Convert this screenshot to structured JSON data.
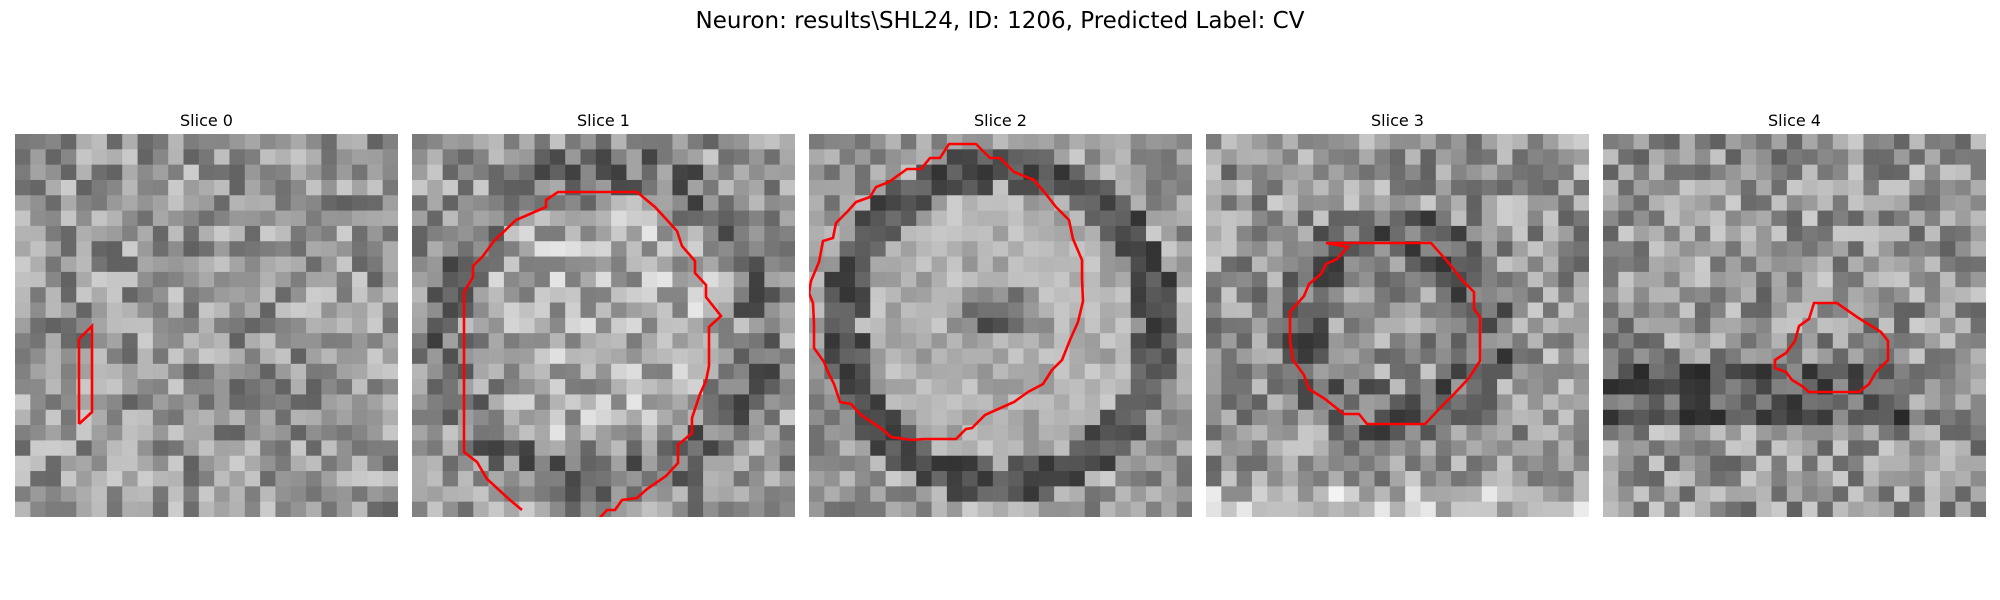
{
  "figure": {
    "title": "Neuron: results\\SHL24, ID: 1206, Predicted Label: CV"
  },
  "panels": [
    {
      "title": "Slice 0",
      "pattern": "noise",
      "seed": 11,
      "contour_color": "#ff0000"
    },
    {
      "title": "Slice 1",
      "pattern": "large-blob",
      "seed": 23,
      "contour_color": "#ff0000"
    },
    {
      "title": "Slice 2",
      "pattern": "ring",
      "seed": 37,
      "contour_color": "#ff0000"
    },
    {
      "title": "Slice 3",
      "pattern": "dark-disk",
      "seed": 51,
      "contour_color": "#ff0000"
    },
    {
      "title": "Slice 4",
      "pattern": "dark-streak",
      "seed": 67,
      "contour_color": "#ff0000"
    }
  ]
}
